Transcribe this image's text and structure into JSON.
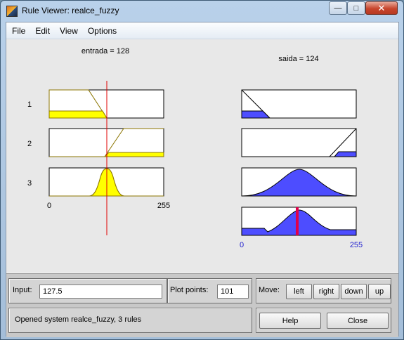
{
  "window": {
    "title": "Rule Viewer: realce_fuzzy"
  },
  "menu": [
    "File",
    "Edit",
    "View",
    "Options"
  ],
  "input_header": "entrada = 128",
  "output_header": "saida = 124",
  "rule_numbers": [
    "1",
    "2",
    "3"
  ],
  "input_axis": {
    "min": "0",
    "max": "255"
  },
  "output_axis": {
    "min": "0",
    "max": "255"
  },
  "input_value": 128,
  "output_value": 124,
  "colors": {
    "input_fill": "#ffff00",
    "output_fill": "#4d4dff",
    "marker": "#e00000"
  },
  "panel": {
    "input_label": "Input:",
    "input_value": "127.5",
    "plot_points_label": "Plot points:",
    "plot_points_value": "101",
    "move_label": "Move:",
    "move_buttons": [
      "left",
      "right",
      "down",
      "up"
    ],
    "status": "Opened system realce_fuzzy, 3 rules",
    "help_label": "Help",
    "close_label": "Close"
  }
}
